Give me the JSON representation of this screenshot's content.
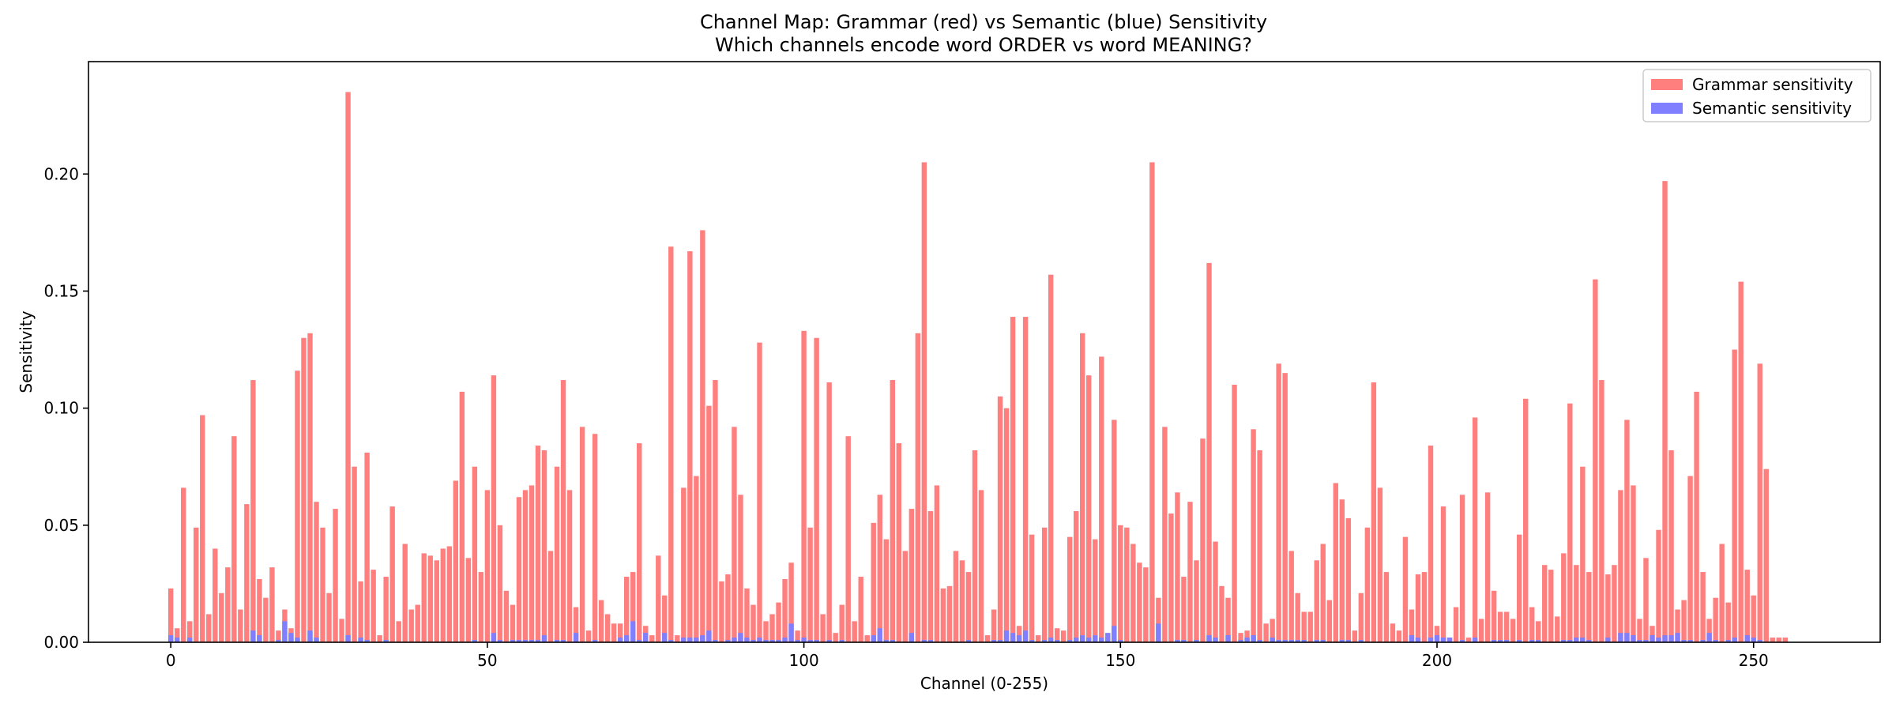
{
  "chart_data": {
    "type": "bar",
    "title": "Channel Map: Grammar (red) vs Semantic (blue) Sensitivity",
    "subtitle": "Which channels encode word ORDER vs word MEANING?",
    "xlabel": "Channel (0-255)",
    "ylabel": "Sensitivity",
    "xlim": [
      -13,
      270
    ],
    "ylim": [
      0,
      0.248
    ],
    "xticks": [
      0,
      50,
      100,
      150,
      200,
      250
    ],
    "yticks": [
      0,
      0.05,
      0.1,
      0.15,
      0.2
    ],
    "ytick_labels": [
      "0.00",
      "0.05",
      "0.10",
      "0.15",
      "0.20"
    ],
    "legend_position": "top-right",
    "grid": false,
    "x": "channels 0-255",
    "series": [
      {
        "name": "Grammar sensitivity",
        "color": "#ff7f7f",
        "values": [
          0.023,
          0.006,
          0.066,
          0.009,
          0.049,
          0.097,
          0.012,
          0.04,
          0.021,
          0.032,
          0.088,
          0.014,
          0.059,
          0.112,
          0.027,
          0.019,
          0.032,
          0.005,
          0.014,
          0.006,
          0.116,
          0.13,
          0.132,
          0.06,
          0.049,
          0.021,
          0.057,
          0.01,
          0.235,
          0.075,
          0.026,
          0.081,
          0.031,
          0.003,
          0.028,
          0.058,
          0.009,
          0.042,
          0.014,
          0.016,
          0.038,
          0.037,
          0.035,
          0.04,
          0.041,
          0.069,
          0.107,
          0.036,
          0.075,
          0.03,
          0.065,
          0.114,
          0.05,
          0.022,
          0.016,
          0.062,
          0.065,
          0.067,
          0.084,
          0.082,
          0.039,
          0.075,
          0.112,
          0.065,
          0.015,
          0.092,
          0.005,
          0.089,
          0.018,
          0.012,
          0.008,
          0.008,
          0.028,
          0.03,
          0.085,
          0.007,
          0.003,
          0.037,
          0.02,
          0.169,
          0.003,
          0.066,
          0.167,
          0.071,
          0.176,
          0.101,
          0.112,
          0.026,
          0.029,
          0.092,
          0.063,
          0.023,
          0.016,
          0.128,
          0.009,
          0.012,
          0.017,
          0.027,
          0.034,
          0.005,
          0.133,
          0.049,
          0.13,
          0.012,
          0.111,
          0.004,
          0.016,
          0.088,
          0.009,
          0.028,
          0.003,
          0.051,
          0.063,
          0.044,
          0.112,
          0.085,
          0.039,
          0.057,
          0.132,
          0.205,
          0.056,
          0.067,
          0.023,
          0.024,
          0.039,
          0.035,
          0.03,
          0.082,
          0.065,
          0.003,
          0.014,
          0.105,
          0.1,
          0.139,
          0.007,
          0.139,
          0.046,
          0.003,
          0.049,
          0.157,
          0.006,
          0.005,
          0.045,
          0.056,
          0.132,
          0.114,
          0.044,
          0.122,
          0.002,
          0.095,
          0.05,
          0.049,
          0.042,
          0.034,
          0.032,
          0.205,
          0.019,
          0.092,
          0.055,
          0.064,
          0.028,
          0.06,
          0.035,
          0.087,
          0.162,
          0.043,
          0.024,
          0.019,
          0.11,
          0.004,
          0.005,
          0.091,
          0.082,
          0.008,
          0.01,
          0.119,
          0.115,
          0.039,
          0.021,
          0.013,
          0.013,
          0.035,
          0.042,
          0.018,
          0.068,
          0.061,
          0.053,
          0.005,
          0.021,
          0.049,
          0.111,
          0.066,
          0.03,
          0.008,
          0.005,
          0.045,
          0.014,
          0.029,
          0.03,
          0.084,
          0.007,
          0.058,
          0.002,
          0.015,
          0.063,
          0.002,
          0.096,
          0.01,
          0.064,
          0.022,
          0.013,
          0.013,
          0.01,
          0.046,
          0.104,
          0.015,
          0.009,
          0.033,
          0.031,
          0.011,
          0.038,
          0.102,
          0.033,
          0.075,
          0.03,
          0.155,
          0.112,
          0.029,
          0.033,
          0.065,
          0.095,
          0.067,
          0.01,
          0.036,
          0.007,
          0.048,
          0.197,
          0.082,
          0.014,
          0.018,
          0.071,
          0.107,
          0.03,
          0.01,
          0.019,
          0.042,
          0.017,
          0.125,
          0.154,
          0.031,
          0.02,
          0.119,
          0.074,
          0.002,
          0.002,
          0.002
        ]
      },
      {
        "name": "Semantic sensitivity",
        "color": "#7f7fff",
        "values": [
          0.003,
          0.002,
          0.0,
          0.002,
          0.0,
          0.0,
          0.0,
          0.0,
          0.0,
          0.0,
          0.0,
          0.0,
          0.0,
          0.005,
          0.003,
          0.0,
          0.0,
          0.001,
          0.009,
          0.004,
          0.002,
          0.0,
          0.005,
          0.002,
          0.0,
          0.0,
          0.0,
          0.0,
          0.003,
          0.0,
          0.002,
          0.001,
          0.0,
          0.0,
          0.001,
          0.0,
          0.0,
          0.0,
          0.0,
          0.0,
          0.0,
          0.0,
          0.0,
          0.0,
          0.0,
          0.0,
          0.0,
          0.0,
          0.001,
          0.0,
          0.0,
          0.004,
          0.001,
          0.0,
          0.001,
          0.001,
          0.001,
          0.001,
          0.001,
          0.003,
          0.0,
          0.001,
          0.001,
          0.0,
          0.004,
          0.0,
          0.0,
          0.001,
          0.0,
          0.0,
          0.0,
          0.002,
          0.003,
          0.009,
          0.001,
          0.004,
          0.0,
          0.0,
          0.004,
          0.001,
          0.0,
          0.002,
          0.002,
          0.002,
          0.003,
          0.005,
          0.001,
          0.0,
          0.001,
          0.002,
          0.004,
          0.002,
          0.001,
          0.002,
          0.001,
          0.001,
          0.001,
          0.002,
          0.008,
          0.001,
          0.002,
          0.001,
          0.001,
          0.0,
          0.001,
          0.0,
          0.001,
          0.0,
          0.0,
          0.0,
          0.0,
          0.003,
          0.006,
          0.001,
          0.001,
          0.0,
          0.0,
          0.004,
          0.0,
          0.001,
          0.001,
          0.0,
          0.0,
          0.0,
          0.0,
          0.0,
          0.001,
          0.0,
          0.0,
          0.0,
          0.001,
          0.001,
          0.005,
          0.004,
          0.003,
          0.005,
          0.001,
          0.0,
          0.001,
          0.002,
          0.001,
          0.0,
          0.001,
          0.002,
          0.003,
          0.002,
          0.003,
          0.002,
          0.004,
          0.007,
          0.001,
          0.0,
          0.0,
          0.0,
          0.0,
          0.0,
          0.008,
          0.0,
          0.0,
          0.001,
          0.001,
          0.0,
          0.001,
          0.0,
          0.003,
          0.002,
          0.0,
          0.003,
          0.0,
          0.001,
          0.002,
          0.003,
          0.001,
          0.0,
          0.002,
          0.001,
          0.001,
          0.001,
          0.001,
          0.001,
          0.0,
          0.001,
          0.001,
          0.0,
          0.0,
          0.001,
          0.001,
          0.0,
          0.001,
          0.0,
          0.0,
          0.0,
          0.0,
          0.0,
          0.0,
          0.0,
          0.003,
          0.002,
          0.0,
          0.002,
          0.003,
          0.002,
          0.002,
          0.0,
          0.001,
          0.0,
          0.002,
          0.0,
          0.0,
          0.001,
          0.001,
          0.001,
          0.0,
          0.001,
          0.0,
          0.001,
          0.001,
          0.0,
          0.0,
          0.0,
          0.001,
          0.001,
          0.002,
          0.002,
          0.001,
          0.0,
          0.0,
          0.002,
          0.0,
          0.004,
          0.004,
          0.003,
          0.001,
          0.001,
          0.003,
          0.002,
          0.003,
          0.003,
          0.004,
          0.001,
          0.001,
          0.0,
          0.001,
          0.004,
          0.001,
          0.0,
          0.001,
          0.002,
          0.0,
          0.003,
          0.002,
          0.001,
          0.0,
          0.0,
          0.0
        ]
      }
    ]
  }
}
